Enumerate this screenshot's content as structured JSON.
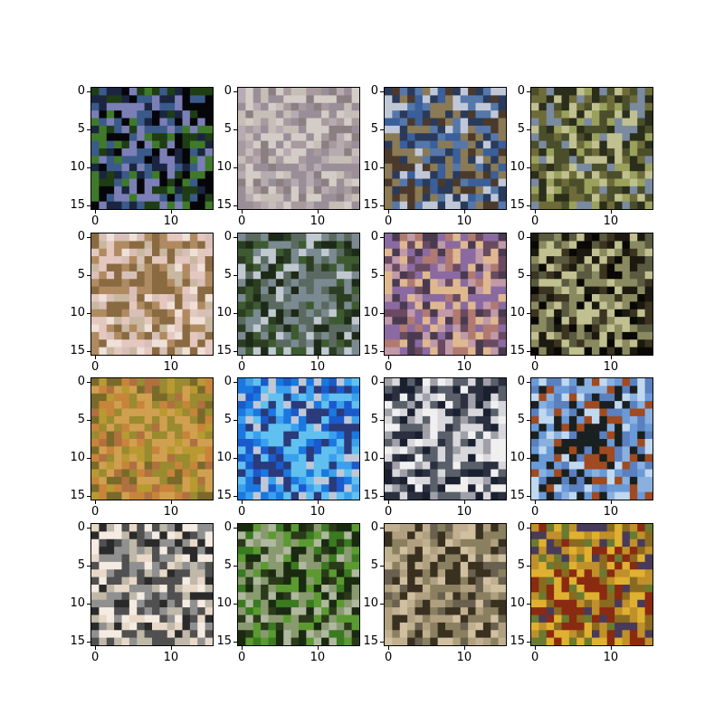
{
  "figure": {
    "rows": 4,
    "cols": 4,
    "image_size": 16,
    "y_ticks": [
      "0",
      "5",
      "10",
      "15"
    ],
    "x_ticks": [
      "0",
      "10"
    ]
  },
  "panels": [
    {
      "name": "panel-dark-blue-object-on-green",
      "palette": [
        "#05050a",
        "#1f3d14",
        "#3a5a8a",
        "#7b7fb5",
        "#1a2540",
        "#3f7a2a"
      ]
    },
    {
      "name": "panel-grey-light-scene",
      "palette": [
        "#c8beb8",
        "#b7aab0",
        "#9a8e98",
        "#d4ccc6",
        "#8b7f82",
        "#a89a9e"
      ]
    },
    {
      "name": "panel-blue-frame-scene",
      "palette": [
        "#3a5f9a",
        "#5577aa",
        "#2a3a5a",
        "#8a7a55",
        "#c0c8d8",
        "#4b3a2c"
      ]
    },
    {
      "name": "panel-olive-green-scene",
      "palette": [
        "#6e6b3a",
        "#9aa15c",
        "#4a4e2a",
        "#c0c090",
        "#2a2e1a",
        "#7a8aa0"
      ]
    },
    {
      "name": "panel-diagonal-object-on-pink",
      "palette": [
        "#e4c8c0",
        "#d8c0b8",
        "#b08a60",
        "#8a6a40",
        "#efe0d8",
        "#c8b8a0"
      ]
    },
    {
      "name": "panel-dark-green-animal",
      "palette": [
        "#2c3e22",
        "#3d5a30",
        "#5a6a60",
        "#7a8a90",
        "#1e2a18",
        "#c0c8d0"
      ]
    },
    {
      "name": "panel-sunset-purple-scene",
      "palette": [
        "#6a4a60",
        "#b07a70",
        "#e0b890",
        "#8a6aa0",
        "#4a3a50",
        "#c09aa8"
      ]
    },
    {
      "name": "panel-dark-object-on-black",
      "palette": [
        "#0a0805",
        "#3a3420",
        "#8a8a60",
        "#c0c090",
        "#1c1a10",
        "#5a5a40"
      ]
    },
    {
      "name": "panel-orange-olive-texture",
      "palette": [
        "#b89a30",
        "#c8843a",
        "#9a8a30",
        "#d0a050",
        "#7a6a2a",
        "#b07040"
      ]
    },
    {
      "name": "panel-bright-blue-scene",
      "palette": [
        "#1a5acc",
        "#3aa0ee",
        "#60c0f0",
        "#2a3a7a",
        "#c0c8d8",
        "#1a78e0"
      ]
    },
    {
      "name": "panel-dark-animal-on-white",
      "palette": [
        "#f0f0f0",
        "#1a2030",
        "#5a606a",
        "#d8d8dc",
        "#2a3040",
        "#a0a0a8"
      ]
    },
    {
      "name": "panel-orange-bird-on-blue",
      "palette": [
        "#6a9ad8",
        "#8ab0e0",
        "#a04a20",
        "#1a2020",
        "#c0d8f0",
        "#5a80c0"
      ]
    },
    {
      "name": "panel-grey-animal-on-cream",
      "palette": [
        "#e8d8c8",
        "#f4ebe2",
        "#505050",
        "#909090",
        "#c0b8a8",
        "#2a2a2a"
      ]
    },
    {
      "name": "panel-green-frog-scene",
      "palette": [
        "#1a2a10",
        "#3a7a20",
        "#5a9a30",
        "#8a9a70",
        "#2a3a1a",
        "#b0b8a0"
      ]
    },
    {
      "name": "panel-brown-sandy-scene",
      "palette": [
        "#b0a080",
        "#c0b090",
        "#3a3020",
        "#8a8060",
        "#d0c0a0",
        "#6a6050"
      ]
    },
    {
      "name": "panel-red-yellow-texture",
      "palette": [
        "#8a6a20",
        "#c0902a",
        "#e0b030",
        "#8a2a10",
        "#4a3a5a",
        "#6a7a30"
      ]
    }
  ]
}
